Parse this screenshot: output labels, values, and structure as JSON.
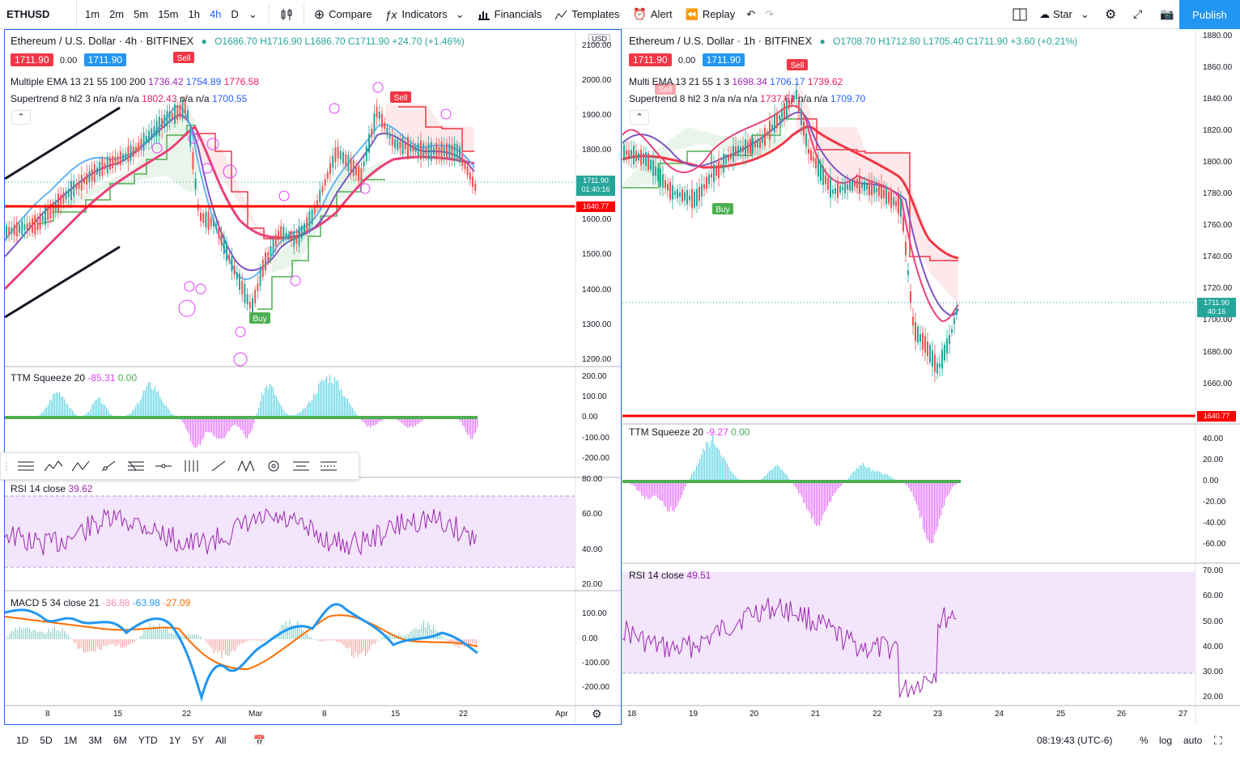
{
  "toolbar": {
    "symbol": "ETHUSD",
    "timeframes": [
      "1m",
      "2m",
      "5m",
      "15m",
      "1h",
      "4h",
      "D"
    ],
    "active_timeframe": "4h",
    "compare": "Compare",
    "indicators": "Indicators",
    "financials": "Financials",
    "templates": "Templates",
    "alert": "Alert",
    "replay": "Replay",
    "star": "Star",
    "publish": "Publish"
  },
  "left_chart": {
    "title": "Ethereum / U.S. Dollar · 4h · BITFINEX",
    "ohlc": "O1686.70 H1716.90 L1686.70 C1711.90 +24.70 (+1.46%)",
    "sell_price": "1711.90",
    "spread": "0.00",
    "buy_price": "1711.90",
    "ema": {
      "name": "Multiple EMA 13 21 55 100 200",
      "v1": "1736.42",
      "v2": "1754.89",
      "v3": "1776.58"
    },
    "supertrend": {
      "name": "Supertrend 8 hl2 3",
      "na": "n/a n/a n/a",
      "v1": "1802.43",
      "na2": "n/a n/a",
      "v2": "1700.55"
    },
    "currency": "USD",
    "price_axis": [
      "2100.00",
      "2000.00",
      "1900.00",
      "1800.00",
      "1700.00",
      "1600.00",
      "1500.00",
      "1400.00",
      "1300.00",
      "1200.00"
    ],
    "current_price": "1711.90",
    "countdown": "01:40:16",
    "hline_price": "1640.77",
    "ttm": {
      "name": "TTM Squeeze 20",
      "v1": "-85.31",
      "v2": "0.00",
      "axis": [
        "200.00",
        "100.00",
        "0.00",
        "-100.00",
        "-200.00"
      ]
    },
    "rsi": {
      "name": "RSI 14 close",
      "v": "39.62",
      "axis": [
        "80.00",
        "60.00",
        "40.00",
        "20.00"
      ]
    },
    "macd": {
      "name": "MACD 5 34 close 21",
      "v1": "-36.88",
      "v2": "-63.98",
      "v3": "-27.09",
      "axis": [
        "100.00",
        "0.00",
        "-100.00",
        "-200.00"
      ]
    },
    "time_axis": [
      "8",
      "15",
      "22",
      "Mar",
      "8",
      "15",
      "22",
      "Apr"
    ],
    "signals": {
      "sell": "Sell",
      "buy": "Buy"
    }
  },
  "right_chart": {
    "title": "Ethereum / U.S. Dollar · 1h · BITFINEX",
    "ohlc": "O1708.70 H1712.80 L1705.40 C1711.90 +3.60 (+0.21%)",
    "sell_price": "1711.90",
    "spread": "0.00",
    "buy_price": "1711.90",
    "ema": {
      "name": "Multi EMA 13 21 55 1 3",
      "v1": "1698.34",
      "v2": "1706.17",
      "v3": "1739.62"
    },
    "supertrend": {
      "name": "Supertrend 8 hl2 3",
      "na": "n/a n/a n/a",
      "v1": "1737.61",
      "na2": "n/a n/a",
      "v2": "1709.70"
    },
    "price_axis": [
      "1880.00",
      "1860.00",
      "1840.00",
      "1820.00",
      "1800.00",
      "1780.00",
      "1760.00",
      "1740.00",
      "1720.00",
      "1700.00",
      "1680.00",
      "1660.00"
    ],
    "current_price": "1711.90",
    "countdown": "40:16",
    "hline_price": "1640.77",
    "ttm": {
      "name": "TTM Squeeze 20",
      "v1": "-9.27",
      "v2": "0.00",
      "axis": [
        "40.00",
        "20.00",
        "0.00",
        "-20.00",
        "-40.00",
        "-60.00"
      ]
    },
    "rsi": {
      "name": "RSI 14 close",
      "v": "49.51",
      "axis": [
        "70.00",
        "60.00",
        "50.00",
        "40.00",
        "30.00",
        "20.00"
      ]
    },
    "time_axis": [
      "18",
      "19",
      "20",
      "21",
      "22",
      "23",
      "24",
      "25",
      "26",
      "27"
    ],
    "signals": {
      "sell": "Sell",
      "buy": "Buy"
    }
  },
  "bottombar": {
    "ranges": [
      "1D",
      "5D",
      "1M",
      "3M",
      "6M",
      "YTD",
      "1Y",
      "5Y",
      "All"
    ],
    "clock": "08:19:43 (UTC-6)",
    "percent": "%",
    "log": "log",
    "auto": "auto"
  },
  "colors": {
    "accent": "#2962ff",
    "red": "#f23645",
    "green": "#4caf50",
    "publish": "#2196f3",
    "rsi_band": "#f3e5fb"
  }
}
